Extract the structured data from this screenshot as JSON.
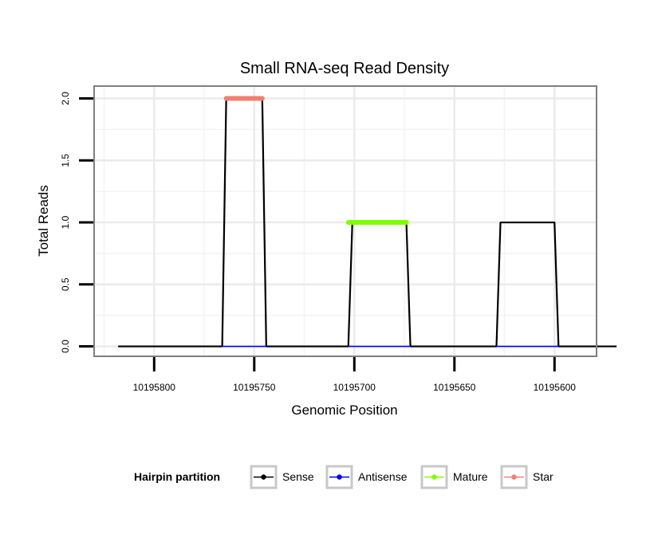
{
  "chart_data": {
    "type": "line",
    "title": "Small RNA-seq Read Density",
    "xlabel": "Genomic Position",
    "ylabel": "Total Reads",
    "x_reversed": true,
    "xlim": [
      10195830,
      10195579
    ],
    "ylim": [
      -0.08,
      2.1
    ],
    "x_ticks": [
      10195800,
      10195750,
      10195700,
      10195650,
      10195600
    ],
    "x_tick_labels": [
      "10195800",
      "10195750",
      "10195700",
      "10195650",
      "10195600"
    ],
    "y_ticks": [
      0,
      0.5,
      1,
      1.5,
      2
    ],
    "y_tick_labels": [
      "0.0",
      "0.5",
      "1.0",
      "1.5",
      "2.0"
    ],
    "grid": true,
    "legend": {
      "title": "Hairpin partition",
      "position": "bottom",
      "entries": [
        {
          "name": "Sense",
          "color": "#000000"
        },
        {
          "name": "Antisense",
          "color": "#0000ff"
        },
        {
          "name": "Mature",
          "color": "#7fff00"
        },
        {
          "name": "Star",
          "color": "#f08070"
        }
      ]
    },
    "series": [
      {
        "name": "Sense",
        "color": "#000000",
        "points": [
          [
            10195818,
            0
          ],
          [
            10195766,
            0
          ],
          [
            10195764,
            2
          ],
          [
            10195746,
            2
          ],
          [
            10195744,
            0
          ],
          [
            10195703,
            0
          ],
          [
            10195701,
            1
          ],
          [
            10195674,
            1
          ],
          [
            10195672,
            0
          ],
          [
            10195629,
            0
          ],
          [
            10195627,
            1
          ],
          [
            10195600,
            1
          ],
          [
            10195598,
            0
          ],
          [
            10195569,
            0
          ]
        ]
      },
      {
        "name": "Antisense",
        "color": "#0000ff",
        "segments": [
          [
            10195766,
            10195744
          ],
          [
            10195703,
            10195672
          ],
          [
            10195629,
            10195598
          ]
        ],
        "value": 0
      },
      {
        "name": "Mature",
        "color": "#7fff00",
        "segments": [
          [
            10195703,
            10195674
          ]
        ],
        "value": 1
      },
      {
        "name": "Star",
        "color": "#f08070",
        "segments": [
          [
            10195764,
            10195746
          ]
        ],
        "value": 2
      }
    ]
  }
}
